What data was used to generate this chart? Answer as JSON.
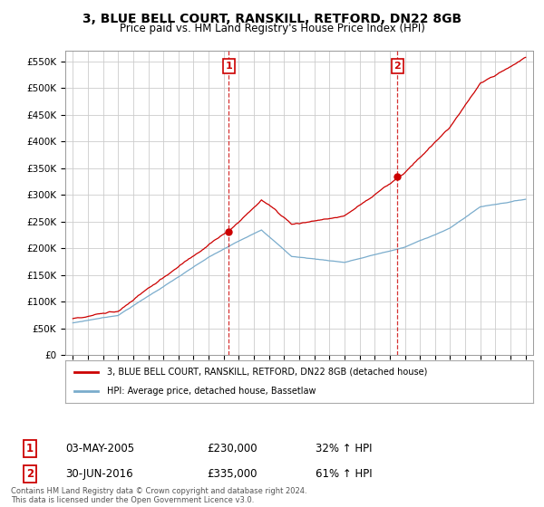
{
  "title": "3, BLUE BELL COURT, RANSKILL, RETFORD, DN22 8GB",
  "subtitle": "Price paid vs. HM Land Registry's House Price Index (HPI)",
  "ylim": [
    0,
    570000
  ],
  "yticks": [
    0,
    50000,
    100000,
    150000,
    200000,
    250000,
    300000,
    350000,
    400000,
    450000,
    500000,
    550000
  ],
  "ytick_labels": [
    "£0",
    "£50K",
    "£100K",
    "£150K",
    "£200K",
    "£250K",
    "£300K",
    "£350K",
    "£400K",
    "£450K",
    "£500K",
    "£550K"
  ],
  "xlim_start": 1994.5,
  "xlim_end": 2025.5,
  "sale1_x": 2005.33,
  "sale1_y": 230000,
  "sale1_label": "1",
  "sale1_date": "03-MAY-2005",
  "sale1_price": "£230,000",
  "sale1_hpi": "32% ↑ HPI",
  "sale2_x": 2016.5,
  "sale2_y": 335000,
  "sale2_label": "2",
  "sale2_date": "30-JUN-2016",
  "sale2_price": "£335,000",
  "sale2_hpi": "61% ↑ HPI",
  "red_line_color": "#cc0000",
  "blue_line_color": "#7aaccc",
  "grid_color": "#cccccc",
  "background_color": "#ffffff",
  "legend_label_red": "3, BLUE BELL COURT, RANSKILL, RETFORD, DN22 8GB (detached house)",
  "legend_label_blue": "HPI: Average price, detached house, Bassetlaw",
  "footnote": "Contains HM Land Registry data © Crown copyright and database right 2024.\nThis data is licensed under the Open Government Licence v3.0.",
  "xtick_years": [
    1995,
    1996,
    1997,
    1998,
    1999,
    2000,
    2001,
    2002,
    2003,
    2004,
    2005,
    2006,
    2007,
    2008,
    2009,
    2010,
    2011,
    2012,
    2013,
    2014,
    2015,
    2016,
    2017,
    2018,
    2019,
    2020,
    2021,
    2022,
    2023,
    2024,
    2025
  ]
}
